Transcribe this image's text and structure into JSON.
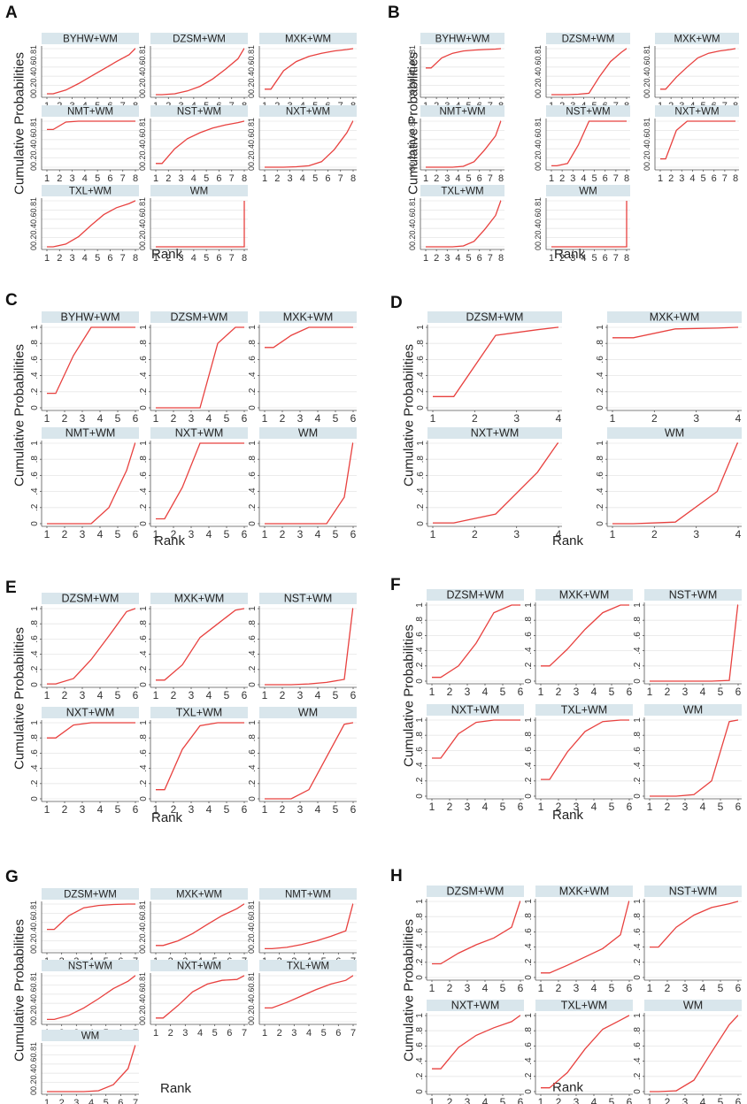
{
  "figure": {
    "y_axis_label": "Cumulative Probabilities",
    "x_axis_label": "Rank",
    "line_color": "#e8413f",
    "strip_color": "#d9e6ec",
    "grid_color": "#e6e6e6"
  },
  "chart_data": [
    {
      "panel": "A",
      "type": "line",
      "ylabel": "Cumulative Probabilities",
      "xlabel": "Rank",
      "x_ticks": [
        1,
        2,
        3,
        4,
        5,
        6,
        7,
        8
      ],
      "y_ticks": [
        "0",
        "0.2",
        "0.4",
        "0.6",
        "0.8",
        "1"
      ],
      "ylim": [
        0,
        1
      ],
      "series": [
        {
          "name": "BYHW+WM",
          "values": [
            0.02,
            0.1,
            0.24,
            0.4,
            0.56,
            0.72,
            0.87,
            1
          ]
        },
        {
          "name": "DZSM+WM",
          "values": [
            0,
            0.02,
            0.08,
            0.18,
            0.34,
            0.55,
            0.78,
            1
          ]
        },
        {
          "name": "MXK+WM",
          "values": [
            0.12,
            0.52,
            0.72,
            0.83,
            0.9,
            0.95,
            0.98,
            1
          ]
        },
        {
          "name": "NMT+WM",
          "values": [
            0.82,
            0.98,
            1,
            1,
            1,
            1,
            1,
            1
          ]
        },
        {
          "name": "NST+WM",
          "values": [
            0.08,
            0.4,
            0.62,
            0.75,
            0.85,
            0.92,
            0.97,
            1
          ]
        },
        {
          "name": "NXT+WM",
          "values": [
            0,
            0,
            0.01,
            0.03,
            0.12,
            0.38,
            0.75,
            1
          ]
        },
        {
          "name": "TXL+WM",
          "values": [
            0,
            0.06,
            0.22,
            0.47,
            0.7,
            0.85,
            0.94,
            1
          ]
        },
        {
          "name": "WM",
          "values": [
            0,
            0,
            0,
            0,
            0,
            0,
            0,
            0
          ],
          "final_jump": 1
        }
      ]
    },
    {
      "panel": "B",
      "type": "line",
      "ylabel": "Cumulative Probabilities",
      "xlabel": "Rank",
      "x_ticks": [
        1,
        2,
        3,
        4,
        5,
        6,
        7,
        8
      ],
      "y_ticks": [
        "0",
        "0.2",
        "0.4",
        "0.6",
        "0.8",
        "1"
      ],
      "ylim": [
        0,
        1
      ],
      "series": [
        {
          "name": "BYHW+WM",
          "values": [
            0.58,
            0.8,
            0.9,
            0.95,
            0.97,
            0.98,
            0.99,
            1
          ]
        },
        {
          "name": "DZSM+WM",
          "values": [
            0,
            0,
            0.01,
            0.03,
            0.4,
            0.72,
            0.92,
            1
          ]
        },
        {
          "name": "MXK+WM",
          "values": [
            0.12,
            0.38,
            0.6,
            0.8,
            0.9,
            0.95,
            0.98,
            1
          ]
        },
        {
          "name": "NMT+WM",
          "values": [
            0,
            0,
            0,
            0.02,
            0.12,
            0.38,
            0.68,
            1
          ]
        },
        {
          "name": "NST+WM",
          "values": [
            0.03,
            0.08,
            0.48,
            1,
            1,
            1,
            1,
            1
          ]
        },
        {
          "name": "NXT+WM",
          "values": [
            0.18,
            0.8,
            1,
            1,
            1,
            1,
            1,
            1
          ]
        },
        {
          "name": "TXL+WM",
          "values": [
            0,
            0,
            0,
            0.02,
            0.12,
            0.38,
            0.68,
            1
          ]
        },
        {
          "name": "WM",
          "values": [
            0,
            0,
            0,
            0,
            0,
            0,
            0,
            0
          ],
          "final_jump": 1
        }
      ]
    },
    {
      "panel": "C",
      "type": "line",
      "ylabel": "Cumulative Probabilities",
      "xlabel": "Rank",
      "x_ticks": [
        1,
        2,
        3,
        4,
        5,
        6
      ],
      "y_ticks": [
        "0",
        ".2",
        ".4",
        ".6",
        ".8",
        "1"
      ],
      "ylim": [
        0,
        1
      ],
      "series": [
        {
          "name": "BYHW+WM",
          "values": [
            0.18,
            0.65,
            1,
            1,
            1,
            1
          ]
        },
        {
          "name": "DZSM+WM",
          "values": [
            0,
            0,
            0,
            0.8,
            1,
            1
          ]
        },
        {
          "name": "MXK+WM",
          "values": [
            0.75,
            0.9,
            1,
            1,
            1,
            1
          ]
        },
        {
          "name": "NMT+WM",
          "values": [
            0,
            0,
            0,
            0.2,
            0.66,
            1
          ]
        },
        {
          "name": "NXT+WM",
          "values": [
            0.06,
            0.45,
            1,
            1,
            1,
            1
          ]
        },
        {
          "name": "WM",
          "values": [
            0,
            0,
            0,
            0,
            0.33,
            1
          ]
        }
      ]
    },
    {
      "panel": "D",
      "type": "line",
      "ylabel": "Cumulative Probabilities",
      "xlabel": "Rank",
      "x_ticks": [
        1,
        2,
        3,
        4
      ],
      "y_ticks": [
        "0",
        ".2",
        ".4",
        ".6",
        ".8",
        "1"
      ],
      "ylim": [
        0,
        1
      ],
      "series": [
        {
          "name": "DZSM+WM",
          "values": [
            0.14,
            0.9,
            0.97,
            1
          ]
        },
        {
          "name": "MXK+WM",
          "values": [
            0.87,
            0.98,
            0.99,
            1
          ]
        },
        {
          "name": "NXT+WM",
          "values": [
            0.01,
            0.12,
            0.64,
            1
          ]
        },
        {
          "name": "WM",
          "values": [
            0,
            0.02,
            0.4,
            1
          ]
        }
      ]
    },
    {
      "panel": "E",
      "type": "line",
      "ylabel": "Cumulative Probabilities",
      "xlabel": "Rank",
      "x_ticks": [
        1,
        2,
        3,
        4,
        5,
        6
      ],
      "y_ticks": [
        "0",
        ".2",
        ".4",
        ".6",
        ".8",
        "1"
      ],
      "ylim": [
        0,
        1
      ],
      "series": [
        {
          "name": "DZSM+WM",
          "values": [
            0.01,
            0.08,
            0.33,
            0.64,
            0.96,
            1
          ]
        },
        {
          "name": "MXK+WM",
          "values": [
            0.06,
            0.26,
            0.62,
            0.8,
            0.98,
            1
          ]
        },
        {
          "name": "NST+WM",
          "values": [
            0,
            0,
            0.01,
            0.03,
            0.07,
            1
          ]
        },
        {
          "name": "NXT+WM",
          "values": [
            0.8,
            0.97,
            1,
            1,
            1,
            1
          ]
        },
        {
          "name": "TXL+WM",
          "values": [
            0.12,
            0.65,
            0.96,
            1,
            1,
            1
          ]
        },
        {
          "name": "WM",
          "values": [
            0,
            0,
            0.12,
            0.55,
            0.98,
            1
          ]
        }
      ]
    },
    {
      "panel": "F",
      "type": "line",
      "ylabel": "Cumulative Probabilities",
      "xlabel": "Rank",
      "x_ticks": [
        1,
        2,
        3,
        4,
        5,
        6
      ],
      "y_ticks": [
        "0",
        ".2",
        ".4",
        ".6",
        ".8",
        "1"
      ],
      "ylim": [
        0,
        1
      ],
      "series": [
        {
          "name": "DZSM+WM",
          "values": [
            0.05,
            0.2,
            0.5,
            0.9,
            1,
            1
          ]
        },
        {
          "name": "MXK+WM",
          "values": [
            0.2,
            0.42,
            0.68,
            0.9,
            1,
            1
          ]
        },
        {
          "name": "NST+WM",
          "values": [
            0,
            0,
            0,
            0,
            0.01,
            1
          ]
        },
        {
          "name": "NXT+WM",
          "values": [
            0.5,
            0.82,
            0.97,
            1,
            1,
            1
          ]
        },
        {
          "name": "TXL+WM",
          "values": [
            0.22,
            0.58,
            0.85,
            0.98,
            1,
            1
          ]
        },
        {
          "name": "WM",
          "values": [
            0,
            0,
            0.02,
            0.2,
            0.98,
            1
          ]
        }
      ]
    },
    {
      "panel": "G",
      "type": "line",
      "ylabel": "Cumulative Probabilities",
      "xlabel": "Rank",
      "x_ticks": [
        1,
        2,
        3,
        4,
        5,
        6,
        7
      ],
      "y_ticks": [
        "0",
        "0.2",
        "0.4",
        "0.6",
        "0.8",
        "1"
      ],
      "ylim": [
        0,
        1
      ],
      "series": [
        {
          "name": "DZSM+WM",
          "values": [
            0.45,
            0.75,
            0.92,
            0.97,
            0.99,
            1,
            1
          ]
        },
        {
          "name": "MXK+WM",
          "values": [
            0.1,
            0.2,
            0.36,
            0.56,
            0.75,
            0.9,
            1
          ]
        },
        {
          "name": "NMT+WM",
          "values": [
            0.03,
            0.06,
            0.12,
            0.2,
            0.3,
            0.42,
            1
          ]
        },
        {
          "name": "NST+WM",
          "values": [
            0.05,
            0.14,
            0.3,
            0.5,
            0.72,
            0.88,
            1
          ]
        },
        {
          "name": "NXT+WM",
          "values": [
            0.08,
            0.35,
            0.65,
            0.82,
            0.9,
            0.92,
            1
          ]
        },
        {
          "name": "TXL+WM",
          "values": [
            0.3,
            0.42,
            0.56,
            0.7,
            0.82,
            0.9,
            1
          ]
        },
        {
          "name": "WM",
          "values": [
            0,
            0,
            0,
            0.02,
            0.15,
            0.5,
            1
          ]
        }
      ]
    },
    {
      "panel": "H",
      "type": "line",
      "ylabel": "Cumulative Probabilities",
      "xlabel": "Rank",
      "x_ticks": [
        1,
        2,
        3,
        4,
        5,
        6
      ],
      "y_ticks": [
        "0",
        ".2",
        ".4",
        ".6",
        ".8",
        "1"
      ],
      "ylim": [
        0,
        1
      ],
      "series": [
        {
          "name": "DZSM+WM",
          "values": [
            0.18,
            0.32,
            0.43,
            0.52,
            0.66,
            1
          ]
        },
        {
          "name": "MXK+WM",
          "values": [
            0.06,
            0.16,
            0.27,
            0.38,
            0.56,
            1
          ]
        },
        {
          "name": "NST+WM",
          "values": [
            0.4,
            0.66,
            0.82,
            0.92,
            0.97,
            1
          ]
        },
        {
          "name": "NXT+WM",
          "values": [
            0.3,
            0.58,
            0.74,
            0.84,
            0.92,
            1
          ]
        },
        {
          "name": "TXL+WM",
          "values": [
            0.05,
            0.25,
            0.56,
            0.82,
            0.94,
            1
          ]
        },
        {
          "name": "WM",
          "values": [
            0,
            0.01,
            0.15,
            0.52,
            0.88,
            1
          ]
        }
      ]
    }
  ]
}
